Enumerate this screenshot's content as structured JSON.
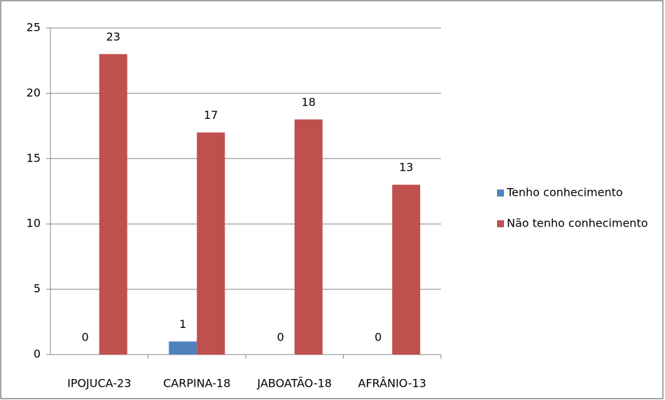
{
  "chart_data": {
    "type": "bar",
    "categories": [
      "IPOJUCA-23",
      "CARPINA-18",
      "JABOATÃO-18",
      "AFRÂNIO-13"
    ],
    "series": [
      {
        "name": "Tenho conhecimento",
        "color": "#4f81bd",
        "values": [
          0,
          1,
          0,
          0
        ]
      },
      {
        "name": "Não tenho conhecimento",
        "color": "#c0504d",
        "values": [
          23,
          17,
          18,
          13
        ]
      }
    ],
    "ylim": [
      0,
      25
    ],
    "yticks": [
      0,
      5,
      10,
      15,
      20,
      25
    ],
    "grid": true,
    "legend": "right"
  }
}
